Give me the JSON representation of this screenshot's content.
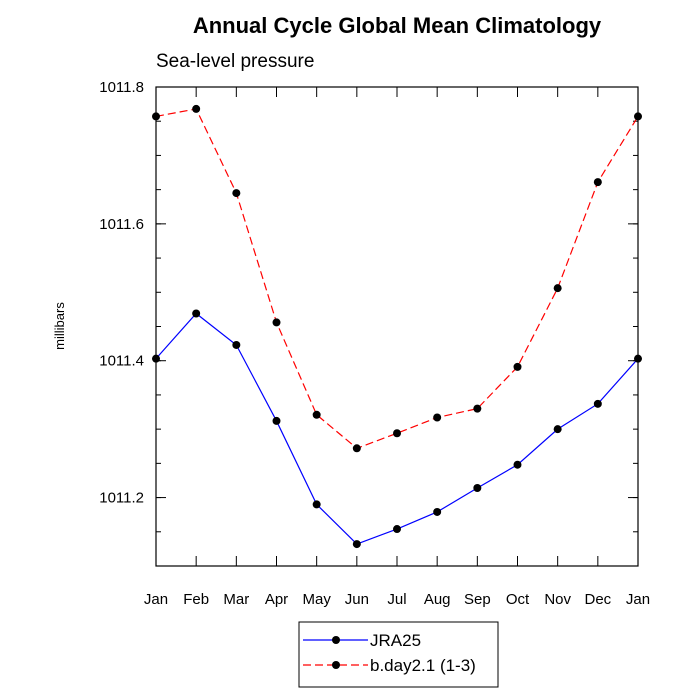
{
  "chart_data": {
    "type": "line",
    "title": "Annual Cycle Global Mean Climatology",
    "subtitle": "Sea-level pressure",
    "xlabel": "",
    "ylabel": "millibars",
    "categories": [
      "Jan",
      "Feb",
      "Mar",
      "Apr",
      "May",
      "Jun",
      "Jul",
      "Aug",
      "Sep",
      "Oct",
      "Nov",
      "Dec",
      "Jan"
    ],
    "ylim": [
      1011.1,
      1011.8
    ],
    "y_major_ticks": [
      1011.2,
      1011.4,
      1011.6,
      1011.8
    ],
    "y_tick_labels": [
      "1011.2",
      "1011.4",
      "1011.6",
      "1011.8"
    ],
    "y_minor_step": 0.05,
    "legend_position": "bottom-center",
    "series": [
      {
        "name": "JRA25",
        "color": "#0000ff",
        "line_style": "solid",
        "values": [
          1011.403,
          1011.469,
          1011.423,
          1011.312,
          1011.19,
          1011.132,
          1011.154,
          1011.179,
          1011.214,
          1011.248,
          1011.3,
          1011.337,
          1011.403
        ]
      },
      {
        "name": "b.day2.1 (1-3)",
        "color": "#ff0000",
        "line_style": "dashed",
        "values": [
          1011.757,
          1011.768,
          1011.645,
          1011.456,
          1011.321,
          1011.272,
          1011.294,
          1011.317,
          1011.33,
          1011.391,
          1011.506,
          1011.661,
          1011.757
        ]
      }
    ]
  }
}
